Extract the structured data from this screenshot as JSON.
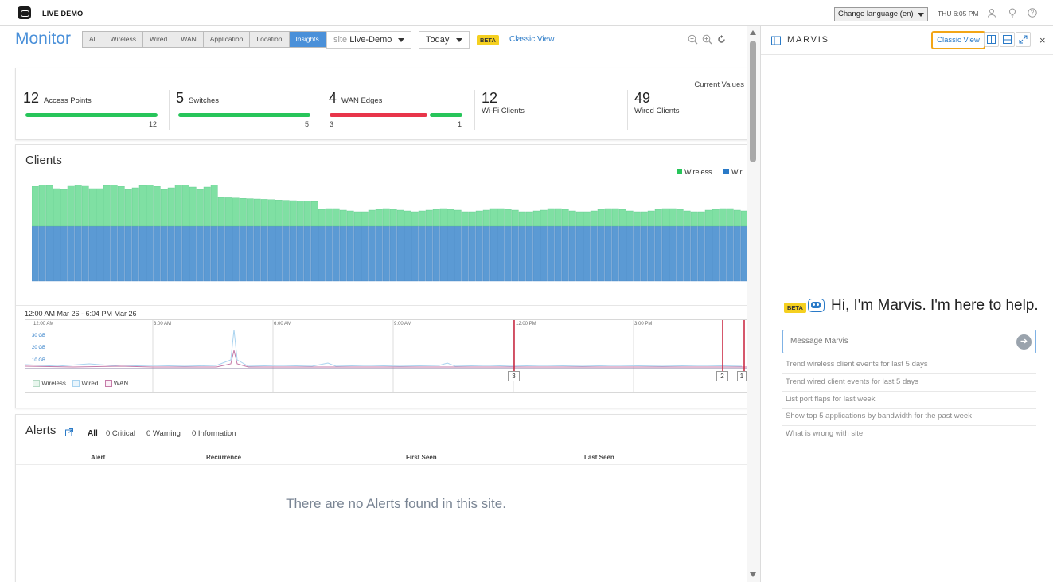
{
  "topbar": {
    "brand": "LIVE DEMO",
    "language": "Change language (en)",
    "time": "THU 6:05 PM",
    "icons": [
      "user-icon",
      "lightbulb-icon",
      "help-icon"
    ]
  },
  "header": {
    "title": "Monitor",
    "tabs": [
      "All",
      "Wireless",
      "Wired",
      "WAN",
      "Application",
      "Location",
      "Insights"
    ],
    "active_tab": "Insights",
    "site_prefix": "site",
    "site_value": "Live-Demo",
    "period": "Today",
    "beta": "BETA",
    "classic_view": "Classic View"
  },
  "summary": {
    "current_values": "Current Values",
    "stats": [
      {
        "num": "12",
        "label": "Access Points",
        "bar_left": "12"
      },
      {
        "num": "5",
        "label": "Switches",
        "bar_left": "5"
      },
      {
        "num": "4",
        "label": "WAN Edges",
        "bar_left": "3",
        "bar_right": "1"
      },
      {
        "num": "12",
        "label": "Wi-Fi Clients"
      },
      {
        "num": "49",
        "label": "Wired Clients"
      }
    ],
    "colors": {
      "good": "#27c55a",
      "bad": "#e8354a"
    }
  },
  "clients": {
    "title": "Clients",
    "legend": [
      "Wireless",
      "Wir"
    ],
    "colors": {
      "wireless": "#7fe0a3",
      "wired": "#5b9ad4"
    }
  },
  "timeline": {
    "range": "12:00 AM Mar 26 - 6:04 PM Mar 26",
    "ticks": [
      "12:00 AM",
      "3:00 AM",
      "6:00 AM",
      "9:00 AM",
      "12:00 PM",
      "3:00 PM"
    ],
    "gb_labels": [
      "30 GB",
      "20 GB",
      "10 GB"
    ],
    "legend": [
      "Wireless",
      "Wired",
      "WAN"
    ],
    "markers": [
      "3",
      "2",
      "1"
    ]
  },
  "alerts": {
    "title": "Alerts",
    "filters": {
      "all": "All",
      "critical": "0 Critical",
      "warning": "0 Warning",
      "info": "0 Information"
    },
    "columns": [
      "Alert",
      "Recurrence",
      "First Seen",
      "Last Seen"
    ],
    "empty": "There are no Alerts found in this site."
  },
  "marvis": {
    "title": "MARVIS",
    "classic_view": "Classic View",
    "beta": "BETA",
    "greeting": "Hi, I'm Marvis. I'm here to help.",
    "input_placeholder": "Message Marvis",
    "suggestions": [
      "Trend wireless client events for last 5 days",
      "Trend wired client events for last 5 days",
      "List port flaps for last week",
      "Show top 5 applications by bandwidth for the past week",
      "What is wrong with site"
    ]
  }
}
